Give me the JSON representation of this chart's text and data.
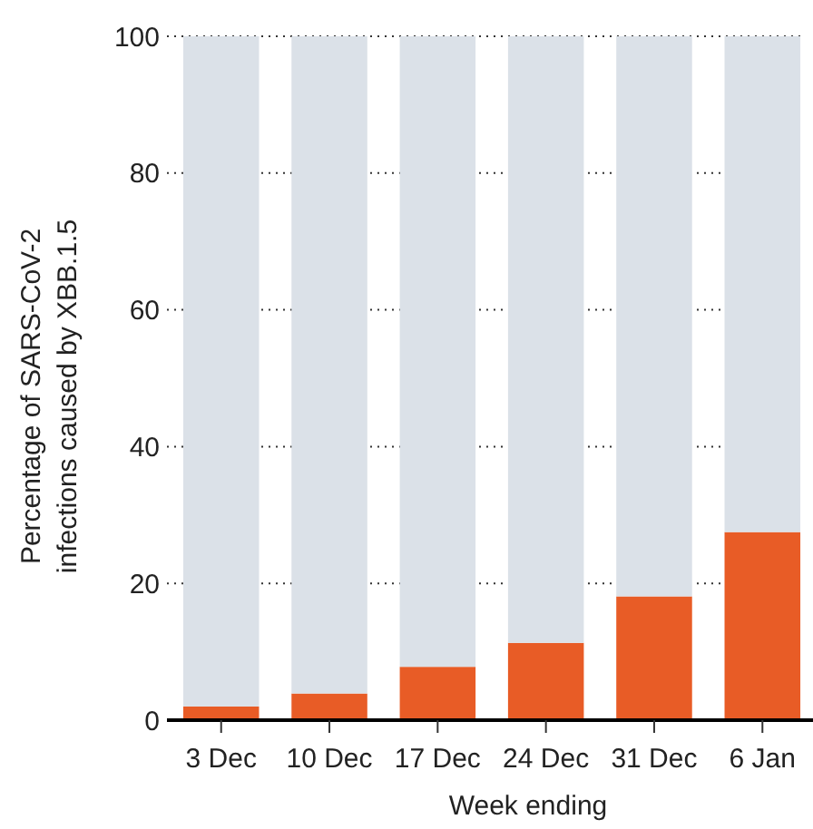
{
  "chart_data": {
    "type": "bar",
    "stacked": true,
    "xlabel": "Week ending",
    "ylabel": "Percentage of SARS-CoV-2\ninfections caused by XBB.1.5",
    "categories": [
      "3 Dec",
      "10 Dec",
      "17 Dec",
      "24 Dec",
      "31 Dec",
      "6 Jan"
    ],
    "series": [
      {
        "color": "#e85c26",
        "values": [
          2.0,
          3.9,
          7.8,
          11.3,
          18.1,
          27.5
        ]
      },
      {
        "color": "#dbe1e8",
        "values": [
          98.0,
          96.1,
          92.2,
          88.7,
          81.9,
          72.5
        ]
      }
    ],
    "ylim": [
      0,
      100
    ],
    "yticks": [
      0,
      20,
      40,
      60,
      80,
      100
    ],
    "grid": "y"
  }
}
